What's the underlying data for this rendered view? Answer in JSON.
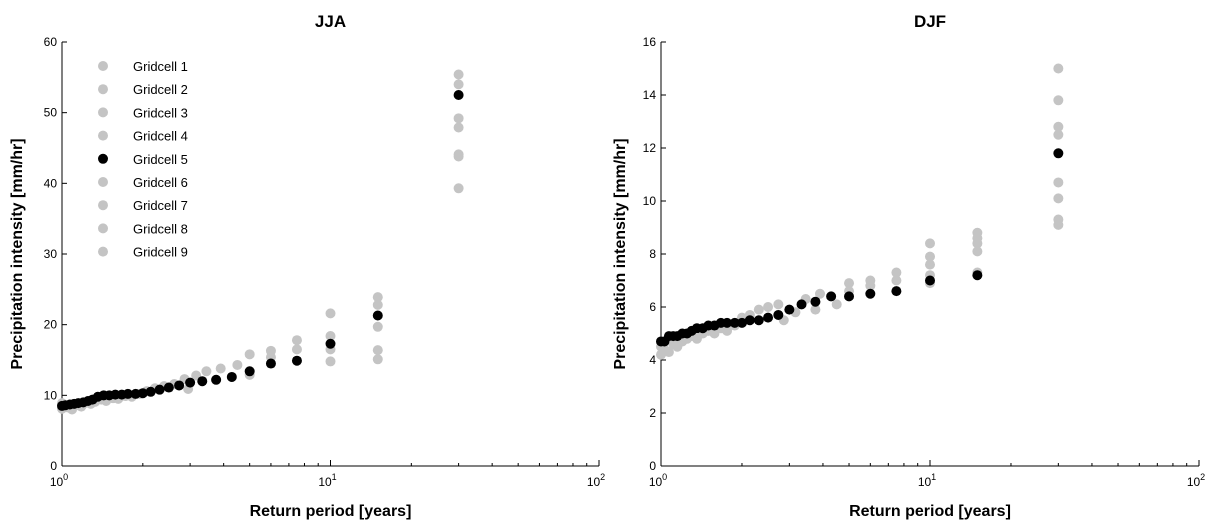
{
  "chart_data": [
    {
      "type": "scatter",
      "title": "JJA",
      "xlabel": "Return period [years]",
      "ylabel": "Precipitation intensity [mm/hr]",
      "xscale": "log",
      "xlim": [
        1,
        100
      ],
      "ylim": [
        0,
        60
      ],
      "yticks": [
        0,
        10,
        20,
        30,
        40,
        50,
        60
      ],
      "xticks": [
        {
          "base": "10",
          "exp": "0"
        },
        {
          "base": "10",
          "exp": "1"
        },
        {
          "base": "10",
          "exp": "2"
        }
      ],
      "legend_position": "top-left",
      "colors": {
        "gray": "#c4c4c4",
        "black": "#000000"
      },
      "highlight_series": "Gridcell 5",
      "series": [
        {
          "name": "Gridcell 1",
          "color": "#c4c4c4"
        },
        {
          "name": "Gridcell 2",
          "color": "#c4c4c4"
        },
        {
          "name": "Gridcell 3",
          "color": "#c4c4c4"
        },
        {
          "name": "Gridcell 4",
          "color": "#c4c4c4"
        },
        {
          "name": "Gridcell 5",
          "color": "#000000"
        },
        {
          "name": "Gridcell 6",
          "color": "#c4c4c4"
        },
        {
          "name": "Gridcell 7",
          "color": "#c4c4c4"
        },
        {
          "name": "Gridcell 8",
          "color": "#c4c4c4"
        },
        {
          "name": "Gridcell 9",
          "color": "#c4c4c4"
        }
      ],
      "gridcell5_points": [
        [
          1.0,
          8.5
        ],
        [
          1.03,
          8.6
        ],
        [
          1.07,
          8.7
        ],
        [
          1.11,
          8.8
        ],
        [
          1.15,
          8.9
        ],
        [
          1.2,
          9.0
        ],
        [
          1.25,
          9.2
        ],
        [
          1.3,
          9.4
        ],
        [
          1.36,
          9.8
        ],
        [
          1.43,
          10.0
        ],
        [
          1.5,
          10.0
        ],
        [
          1.58,
          10.1
        ],
        [
          1.67,
          10.1
        ],
        [
          1.76,
          10.2
        ],
        [
          1.88,
          10.2
        ],
        [
          2.0,
          10.3
        ],
        [
          2.14,
          10.5
        ],
        [
          2.31,
          10.8
        ],
        [
          2.5,
          11.1
        ],
        [
          2.73,
          11.4
        ],
        [
          3.0,
          11.8
        ],
        [
          3.33,
          12.0
        ],
        [
          3.75,
          12.2
        ],
        [
          4.29,
          12.6
        ],
        [
          5.0,
          13.4
        ],
        [
          6.0,
          14.5
        ],
        [
          7.5,
          14.9
        ],
        [
          10.0,
          17.3
        ],
        [
          15.0,
          21.3
        ],
        [
          30.0,
          52.5
        ]
      ],
      "gray_points": [
        [
          1.0,
          8.1
        ],
        [
          1.0,
          8.9
        ],
        [
          1.05,
          8.3
        ],
        [
          1.09,
          8.0
        ],
        [
          1.13,
          8.6
        ],
        [
          1.18,
          8.4
        ],
        [
          1.22,
          8.9
        ],
        [
          1.28,
          8.8
        ],
        [
          1.33,
          9.1
        ],
        [
          1.4,
          9.4
        ],
        [
          1.46,
          9.2
        ],
        [
          1.55,
          9.6
        ],
        [
          1.62,
          9.5
        ],
        [
          1.72,
          9.9
        ],
        [
          1.82,
          9.8
        ],
        [
          1.95,
          10.2
        ],
        [
          2.07,
          10.6
        ],
        [
          2.22,
          11.0
        ],
        [
          2.4,
          11.3
        ],
        [
          2.62,
          11.6
        ],
        [
          2.86,
          12.3
        ],
        [
          2.95,
          10.9
        ],
        [
          3.16,
          12.8
        ],
        [
          3.45,
          13.4
        ],
        [
          3.9,
          13.8
        ],
        [
          4.5,
          14.3
        ],
        [
          5.0,
          15.8
        ],
        [
          5.0,
          12.9
        ],
        [
          6.0,
          15.4
        ],
        [
          6.0,
          16.3
        ],
        [
          7.5,
          16.5
        ],
        [
          7.5,
          17.8
        ],
        [
          10.0,
          14.8
        ],
        [
          10.0,
          16.5
        ],
        [
          10.0,
          18.4
        ],
        [
          10.0,
          21.6
        ],
        [
          15.0,
          15.1
        ],
        [
          15.0,
          16.4
        ],
        [
          15.0,
          19.7
        ],
        [
          15.0,
          22.8
        ],
        [
          15.0,
          23.9
        ],
        [
          30.0,
          39.3
        ],
        [
          30.0,
          43.8
        ],
        [
          30.0,
          44.1
        ],
        [
          30.0,
          47.9
        ],
        [
          30.0,
          49.2
        ],
        [
          30.0,
          54.0
        ],
        [
          30.0,
          55.4
        ]
      ]
    },
    {
      "type": "scatter",
      "title": "DJF",
      "xlabel": "Return period [years]",
      "ylabel": "Precipitation intensity [mm/hr]",
      "xscale": "log",
      "xlim": [
        1,
        100
      ],
      "ylim": [
        0,
        16
      ],
      "yticks": [
        0,
        2,
        4,
        6,
        8,
        10,
        12,
        14,
        16
      ],
      "xticks": [
        {
          "base": "10",
          "exp": "0"
        },
        {
          "base": "10",
          "exp": "1"
        },
        {
          "base": "10",
          "exp": "2"
        }
      ],
      "colors": {
        "gray": "#c4c4c4",
        "black": "#000000"
      },
      "highlight_series": "Gridcell 5",
      "gridcell5_points": [
        [
          1.0,
          4.7
        ],
        [
          1.03,
          4.7
        ],
        [
          1.07,
          4.9
        ],
        [
          1.11,
          4.9
        ],
        [
          1.15,
          4.9
        ],
        [
          1.2,
          5.0
        ],
        [
          1.25,
          5.0
        ],
        [
          1.3,
          5.1
        ],
        [
          1.36,
          5.2
        ],
        [
          1.43,
          5.2
        ],
        [
          1.5,
          5.3
        ],
        [
          1.58,
          5.3
        ],
        [
          1.67,
          5.4
        ],
        [
          1.76,
          5.4
        ],
        [
          1.88,
          5.4
        ],
        [
          2.0,
          5.4
        ],
        [
          2.14,
          5.5
        ],
        [
          2.31,
          5.5
        ],
        [
          2.5,
          5.6
        ],
        [
          2.73,
          5.7
        ],
        [
          3.0,
          5.9
        ],
        [
          3.33,
          6.1
        ],
        [
          3.75,
          6.2
        ],
        [
          4.29,
          6.4
        ],
        [
          5.0,
          6.4
        ],
        [
          6.0,
          6.5
        ],
        [
          7.5,
          6.6
        ],
        [
          10.0,
          7.0
        ],
        [
          15.0,
          7.2
        ],
        [
          30.0,
          11.8
        ]
      ],
      "gray_points": [
        [
          1.0,
          4.2
        ],
        [
          1.0,
          4.5
        ],
        [
          1.03,
          4.4
        ],
        [
          1.07,
          4.3
        ],
        [
          1.11,
          4.6
        ],
        [
          1.15,
          4.5
        ],
        [
          1.2,
          4.7
        ],
        [
          1.25,
          4.8
        ],
        [
          1.3,
          4.9
        ],
        [
          1.36,
          4.8
        ],
        [
          1.43,
          5.0
        ],
        [
          1.5,
          5.1
        ],
        [
          1.58,
          5.0
        ],
        [
          1.67,
          5.2
        ],
        [
          1.76,
          5.1
        ],
        [
          1.88,
          5.3
        ],
        [
          2.0,
          5.6
        ],
        [
          2.14,
          5.7
        ],
        [
          2.31,
          5.9
        ],
        [
          2.5,
          6.0
        ],
        [
          2.73,
          6.1
        ],
        [
          2.86,
          5.5
        ],
        [
          3.16,
          5.8
        ],
        [
          3.45,
          6.3
        ],
        [
          3.9,
          6.5
        ],
        [
          3.75,
          5.9
        ],
        [
          4.5,
          6.1
        ],
        [
          5.0,
          6.9
        ],
        [
          5.0,
          6.6
        ],
        [
          6.0,
          6.8
        ],
        [
          6.0,
          7.0
        ],
        [
          7.5,
          7.3
        ],
        [
          7.5,
          7.0
        ],
        [
          10.0,
          6.9
        ],
        [
          10.0,
          7.2
        ],
        [
          10.0,
          7.6
        ],
        [
          10.0,
          7.9
        ],
        [
          10.0,
          8.4
        ],
        [
          15.0,
          7.3
        ],
        [
          15.0,
          8.1
        ],
        [
          15.0,
          8.4
        ],
        [
          15.0,
          8.6
        ],
        [
          15.0,
          8.8
        ],
        [
          30.0,
          9.1
        ],
        [
          30.0,
          9.3
        ],
        [
          30.0,
          10.1
        ],
        [
          30.0,
          10.7
        ],
        [
          30.0,
          12.5
        ],
        [
          30.0,
          12.8
        ],
        [
          30.0,
          13.8
        ],
        [
          30.0,
          15.0
        ]
      ]
    }
  ]
}
